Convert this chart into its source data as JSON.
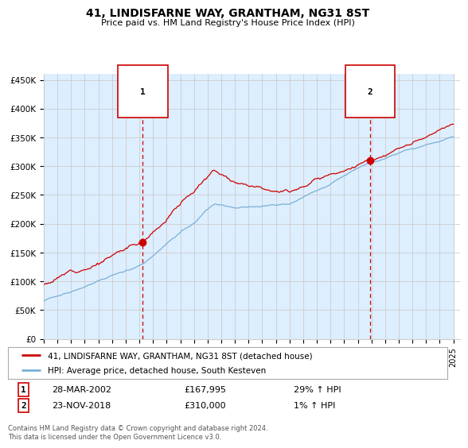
{
  "title": "41, LINDISFARNE WAY, GRANTHAM, NG31 8ST",
  "subtitle": "Price paid vs. HM Land Registry's House Price Index (HPI)",
  "legend_line1": "41, LINDISFARNE WAY, GRANTHAM, NG31 8ST (detached house)",
  "legend_line2": "HPI: Average price, detached house, South Kesteven",
  "event1_date_label": "28-MAR-2002",
  "event1_price_label": "£167,995",
  "event1_hpi_label": "29% ↑ HPI",
  "event2_date_label": "23-NOV-2018",
  "event2_price_label": "£310,000",
  "event2_hpi_label": "1% ↑ HPI",
  "event1_year": 2002.25,
  "event1_y": 167995,
  "event2_year": 2018.9,
  "event2_y": 310000,
  "ylim": [
    0,
    460000
  ],
  "yticks": [
    0,
    50000,
    100000,
    150000,
    200000,
    250000,
    300000,
    350000,
    400000,
    450000
  ],
  "ytick_labels": [
    "£0",
    "£50K",
    "£100K",
    "£150K",
    "£200K",
    "£250K",
    "£300K",
    "£350K",
    "£400K",
    "£450K"
  ],
  "xlim_start": 1995,
  "xlim_end": 2025.5,
  "red_line_color": "#cc0000",
  "blue_line_color": "#7ab0d4",
  "bg_fill_color": "#ddeeff",
  "vline_color": "#cc0000",
  "grid_color": "#cccccc",
  "dot_color": "#cc0000",
  "footnote": "Contains HM Land Registry data © Crown copyright and database right 2024.\nThis data is licensed under the Open Government Licence v3.0.",
  "background_color": "#ffffff"
}
